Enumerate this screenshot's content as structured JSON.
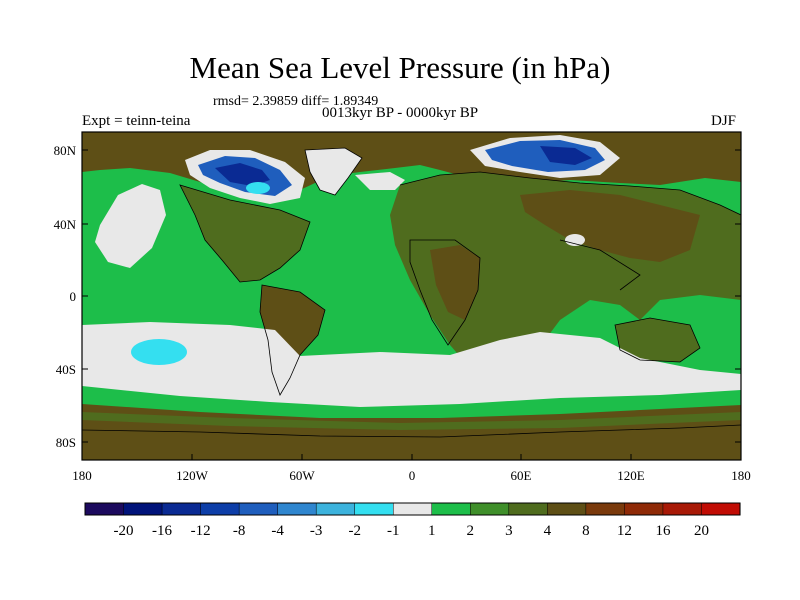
{
  "title": "Mean Sea Level Pressure (in hPa)",
  "stats": "rmsd= 2.39859 diff= 1.89349",
  "period": "0013kyr BP - 0000kyr BP",
  "experiment": "Expt = teinn-teina",
  "season": "DJF",
  "axes": {
    "y_ticks": [
      "80N",
      "40N",
      "0",
      "40S",
      "80S"
    ],
    "x_ticks": [
      "180",
      "120W",
      "60W",
      "0",
      "60E",
      "120E",
      "180"
    ]
  },
  "colorbar": {
    "colors": [
      "#1c0a5e",
      "#00137a",
      "#0a2a93",
      "#0d3ea8",
      "#1f5ebd",
      "#2f86cf",
      "#3cb3dd",
      "#34dff0",
      "#e8e8e8",
      "#1dbe4a",
      "#3f8f2a",
      "#4f6c1e",
      "#5e4f16",
      "#7a3a0c",
      "#8f2a07",
      "#a81906",
      "#c10c04"
    ],
    "labels": [
      "-20",
      "-16",
      "-12",
      "-8",
      "-4",
      "-3",
      "-2",
      "-1",
      "1",
      "2",
      "3",
      "4",
      "8",
      "12",
      "16",
      "20"
    ]
  },
  "colors": {
    "ocean_green": "#1dbe4a",
    "land_olive": "#4f6c1e",
    "land_brown": "#5e4f16",
    "band_gray": "#e8e8e8",
    "low_cyan": "#34dff0",
    "low_blue": "#1f5ebd",
    "low_navy": "#0a2a93"
  }
}
